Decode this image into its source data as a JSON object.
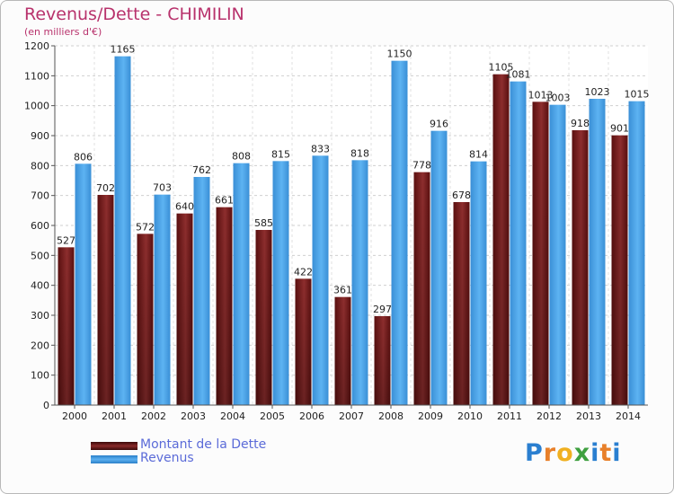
{
  "title": "Revenus/Dette - CHIMILIN",
  "subtitle": "(en milliers d'€)",
  "colors": {
    "dette": "#7a1e1e",
    "revenus": "#3f9be2",
    "title": "#b8326c",
    "legend_text": "#5b6bd8"
  },
  "legend": [
    {
      "label": "Montant de la Dette",
      "color": "#7a1e1e"
    },
    {
      "label": "Revenus",
      "color": "#3f9be2"
    }
  ],
  "logo": {
    "text": "Proxiti",
    "letter_colors": [
      "#2a7fd0",
      "#e8802a",
      "#f0b020",
      "#3fa040",
      "#2a7fd0",
      "#e8802a",
      "#2a7fd0"
    ]
  },
  "chart_data": {
    "type": "bar",
    "title": "Revenus/Dette - CHIMILIN",
    "subtitle": "(en milliers d'€)",
    "categories": [
      "2000",
      "2001",
      "2002",
      "2003",
      "2004",
      "2005",
      "2006",
      "2007",
      "2008",
      "2009",
      "2010",
      "2011",
      "2012",
      "2013",
      "2014"
    ],
    "series": [
      {
        "name": "Montant de la Dette",
        "values": [
          527,
          702,
          572,
          640,
          661,
          585,
          422,
          361,
          297,
          778,
          678,
          1105,
          1013,
          918,
          901
        ]
      },
      {
        "name": "Revenus",
        "values": [
          806,
          1165,
          703,
          762,
          808,
          815,
          833,
          818,
          1150,
          916,
          814,
          1081,
          1003,
          1023,
          1015
        ]
      }
    ],
    "ylim": [
      0,
      1200
    ],
    "yticks": [
      0,
      100,
      200,
      300,
      400,
      500,
      600,
      700,
      800,
      900,
      1000,
      1100,
      1200
    ],
    "grid": true,
    "legend_position": "bottom-left"
  }
}
